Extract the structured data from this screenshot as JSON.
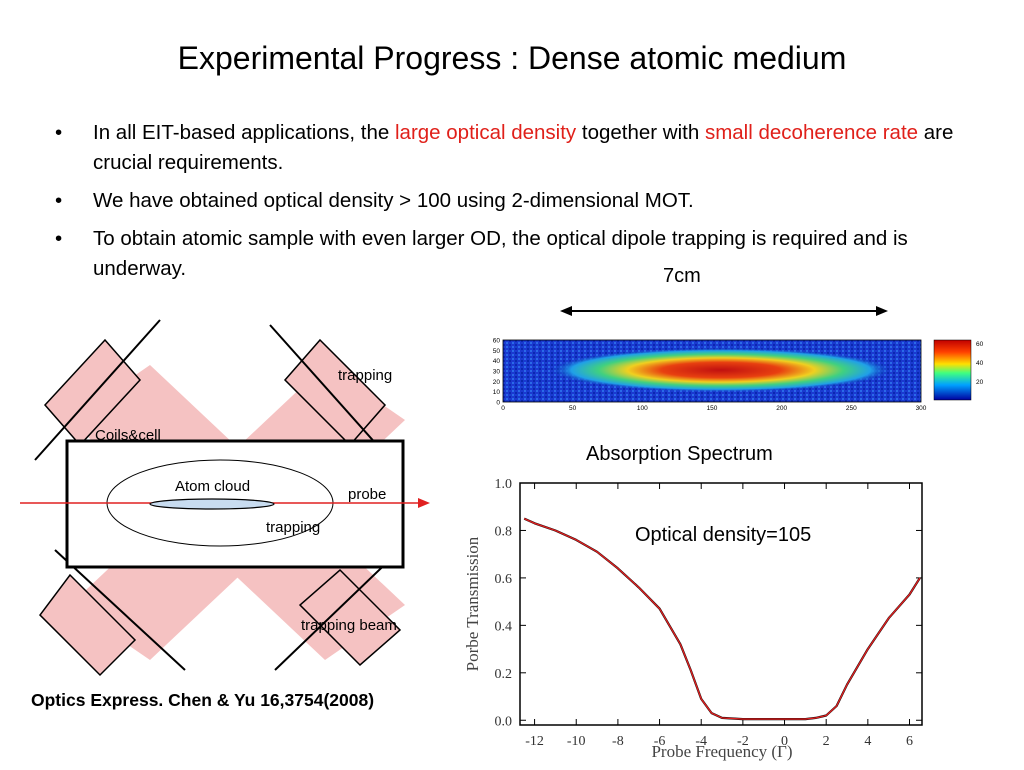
{
  "title": "Experimental Progress : Dense atomic medium",
  "bullets": [
    {
      "parts": [
        {
          "text": "In all EIT-based applications, the ",
          "color": "#000000"
        },
        {
          "text": "large optical density",
          "color": "#e0201a"
        },
        {
          "text": " together with ",
          "color": "#000000"
        },
        {
          "text": "small decoherence rate",
          "color": "#e0201a"
        },
        {
          "text": " are crucial requirements.",
          "color": "#000000"
        }
      ]
    },
    {
      "parts": [
        {
          "text": "We have obtained optical density > 100 using 2-dimensional MOT.",
          "color": "#000000"
        }
      ]
    },
    {
      "parts": [
        {
          "text": "To obtain atomic sample with even larger OD, the optical dipole trapping is required and is underway.",
          "color": "#000000"
        }
      ]
    }
  ],
  "diagram": {
    "coils_label": "Coils&cell",
    "trapping_top": "trapping",
    "atom_cloud": "Atom cloud",
    "probe": "probe",
    "trapping_mid": "trapping",
    "trapping_beam": "trapping beam"
  },
  "image_panel": {
    "length_label": "7cm",
    "y_ticks": [
      "60",
      "50",
      "40",
      "30",
      "20",
      "10",
      "0"
    ],
    "x_ticks": [
      "0",
      "50",
      "100",
      "150",
      "200",
      "250",
      "300"
    ],
    "colorbar_ticks": [
      "60",
      "40",
      "20"
    ]
  },
  "reference": "Optics Express. Chen & Yu 16,3754(2008)",
  "chart_data": {
    "type": "line",
    "title": "Absorption Spectrum",
    "annotation": "Optical density=105",
    "xlabel": "Probe Frequency (Γ)",
    "ylabel": "Porbe Transmission",
    "xlim": [
      -12.7,
      6.6
    ],
    "ylim": [
      -0.02,
      1.0
    ],
    "x_ticks": [
      "-12",
      "-10",
      "-8",
      "-6",
      "-4",
      "-2",
      "0",
      "2",
      "4",
      "6"
    ],
    "y_ticks": [
      "0.0",
      "0.2",
      "0.4",
      "0.6",
      "0.8",
      "1.0"
    ],
    "series": [
      {
        "style": "data",
        "color": "#000000",
        "x": [
          -12.5,
          -12,
          -11,
          -10,
          -9,
          -8,
          -7,
          -6,
          -5,
          -4.5,
          -4,
          -3.5,
          -3,
          -2,
          -1,
          0,
          1,
          1.5,
          2,
          2.5,
          3,
          4,
          5,
          6,
          6.5
        ],
        "y": [
          0.85,
          0.83,
          0.8,
          0.76,
          0.71,
          0.64,
          0.56,
          0.47,
          0.32,
          0.21,
          0.09,
          0.03,
          0.01,
          0.005,
          0.005,
          0.005,
          0.005,
          0.01,
          0.02,
          0.06,
          0.15,
          0.3,
          0.43,
          0.53,
          0.6
        ]
      },
      {
        "style": "fit",
        "color": "#e02020",
        "x": [
          -12.5,
          -12,
          -11,
          -10,
          -9,
          -8,
          -7,
          -6,
          -5,
          -4.5,
          -4,
          -3.5,
          -3,
          -2,
          -1,
          0,
          1,
          1.5,
          2,
          2.5,
          3,
          4,
          5,
          6,
          6.5
        ],
        "y": [
          0.85,
          0.83,
          0.8,
          0.76,
          0.71,
          0.64,
          0.56,
          0.47,
          0.32,
          0.21,
          0.09,
          0.03,
          0.01,
          0.005,
          0.005,
          0.005,
          0.005,
          0.01,
          0.02,
          0.06,
          0.15,
          0.3,
          0.43,
          0.53,
          0.6
        ]
      }
    ]
  }
}
